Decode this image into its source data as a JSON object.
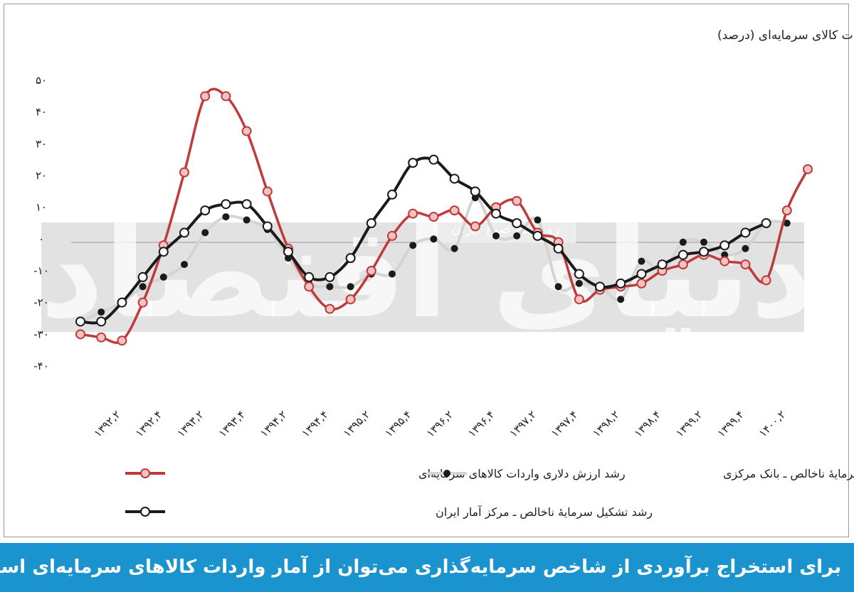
{
  "caption": "برای استخراج برآوردی از شاخص سرمایه‌گذاری می‌توان از آمار واردات کالاهای سرمایه‌ای استفاده کرد.",
  "watermark": {
    "text": "دنیای اقتصاد",
    "subtext": "روزنامه صبح ایران"
  },
  "colors": {
    "imports": "#c0393b",
    "cbi": "#1a1a1a",
    "sci": "#1a1a1a",
    "gray_line": "#d4d4d4",
    "band": "#e2e2e2",
    "caption_bg": "#1a93cf"
  },
  "chart_data": {
    "type": "line",
    "title": "مقایسهٔ رشد یک‌ساله تشکیل سرمایه ناخالص و ارزش دلاری واردات کالای سرمایه‌ای (درصد)",
    "xlabel": "",
    "ylabel": "",
    "ylim": [
      -40,
      50
    ],
    "yticks": [
      50,
      40,
      30,
      20,
      10,
      0,
      -10,
      -20,
      -30,
      -40
    ],
    "ytick_labels": [
      "۵۰",
      "۴۰",
      "۳۰",
      "۲۰",
      "۱۰",
      "۰",
      "-۱۰",
      "-۲۰",
      "-۳۰",
      "-۴۰"
    ],
    "x_tick_labels": [
      "۱۳۹۲,۲",
      "۱۳۹۲,۴",
      "۱۳۹۳,۲",
      "۱۳۹۳,۴",
      "۱۳۹۴,۲",
      "۱۳۹۴,۴",
      "۱۳۹۵,۲",
      "۱۳۹۵,۴",
      "۱۳۹۶,۲",
      "۱۳۹۶,۴",
      "۱۳۹۷,۲",
      "۱۳۹۷,۴",
      "۱۳۹۸,۲",
      "۱۳۹۸,۴",
      "۱۳۹۹,۲",
      "۱۳۹۹,۴",
      "۱۴۰۰,۲"
    ],
    "grid": false,
    "legend_position": "bottom",
    "series": [
      {
        "name": "رشد ارزش دلاری واردات کالاهای سرمایه‌ای",
        "values": [
          -30,
          -31,
          -32,
          -20,
          -2,
          21,
          45,
          45,
          34,
          15,
          -3,
          -15,
          -22,
          -19,
          -10,
          1,
          8,
          7,
          9,
          4,
          10,
          12,
          2,
          -1,
          -19,
          -16,
          -15,
          -14,
          -10,
          -8,
          -5,
          -7,
          -8,
          -13,
          9,
          22
        ]
      },
      {
        "name": "رشد تشکیل سرمایهٔ ناخالص ـ بانک مرکزی",
        "values": [
          -26,
          -23,
          -20,
          -15,
          -12,
          -8,
          2,
          7,
          6,
          3,
          -6,
          -14,
          -15,
          -15,
          -11,
          -11,
          -2,
          0,
          -3,
          13,
          1,
          1,
          6,
          -15,
          -14,
          -15,
          -19,
          -7,
          -10,
          -1,
          -1,
          -5,
          -3,
          5,
          5
        ]
      },
      {
        "name": "رشد تشکیل سرمایهٔ ناخالص ـ مرکز آمار ایران",
        "values": [
          -26,
          -26,
          -20,
          -12,
          -4,
          2,
          9,
          11,
          11,
          4,
          -4,
          -12,
          -12,
          -6,
          5,
          14,
          24,
          25,
          19,
          15,
          8,
          5,
          1,
          -3,
          -11,
          -15,
          -14,
          -11,
          -8,
          -5,
          -4,
          -2,
          2,
          5
        ]
      }
    ]
  }
}
